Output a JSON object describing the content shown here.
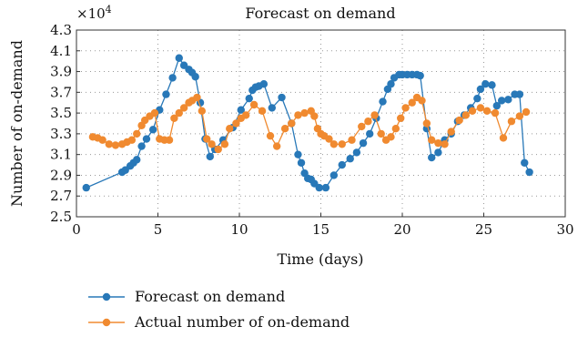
{
  "chart_data": {
    "type": "line",
    "title": "Forecast on demand",
    "xlabel": "Time (days)",
    "ylabel": "Number of on-demand",
    "y_multiplier_label": "×10",
    "y_multiplier_exp": "4",
    "xlim": [
      0,
      30
    ],
    "ylim": [
      2.5,
      4.3
    ],
    "x_ticks": [
      "0",
      "5",
      "10",
      "15",
      "20",
      "25",
      "30"
    ],
    "y_ticks": [
      "2.5",
      "2.7",
      "2.9",
      "3.1",
      "3.3",
      "3.5",
      "3.7",
      "3.9",
      "4.1",
      "4.3"
    ],
    "grid": true,
    "legend_position": "bottom-left",
    "series": [
      {
        "name": "Forecast on demand",
        "color": "#2878b8",
        "x": [
          0.6,
          2.8,
          3.0,
          3.3,
          3.5,
          3.7,
          4.0,
          4.3,
          4.7,
          5.1,
          5.5,
          5.9,
          6.3,
          6.6,
          6.9,
          7.1,
          7.3,
          7.6,
          7.9,
          8.2,
          8.5,
          9.0,
          9.6,
          10.1,
          10.6,
          10.8,
          11.0,
          11.2,
          11.5,
          12.0,
          12.6,
          13.2,
          13.6,
          13.8,
          14.0,
          14.2,
          14.4,
          14.6,
          14.9,
          15.3,
          15.8,
          16.3,
          16.8,
          17.2,
          17.6,
          18.0,
          18.4,
          18.8,
          19.1,
          19.3,
          19.5,
          19.8,
          20.0,
          20.3,
          20.6,
          20.9,
          21.1,
          21.5,
          21.8,
          22.2,
          22.6,
          23.0,
          23.4,
          23.8,
          24.2,
          24.6,
          24.8,
          25.1,
          25.5,
          25.8,
          26.1,
          26.5,
          26.9,
          27.2,
          27.5,
          27.8
        ],
        "y": [
          2.78,
          2.93,
          2.95,
          2.99,
          3.02,
          3.05,
          3.18,
          3.25,
          3.34,
          3.53,
          3.68,
          3.84,
          4.03,
          3.96,
          3.92,
          3.89,
          3.85,
          3.6,
          3.25,
          3.08,
          3.15,
          3.24,
          3.36,
          3.53,
          3.64,
          3.72,
          3.75,
          3.76,
          3.78,
          3.55,
          3.65,
          3.4,
          3.1,
          3.02,
          2.92,
          2.87,
          2.86,
          2.82,
          2.78,
          2.78,
          2.9,
          3.0,
          3.06,
          3.12,
          3.21,
          3.3,
          3.45,
          3.61,
          3.73,
          3.78,
          3.84,
          3.87,
          3.87,
          3.87,
          3.87,
          3.87,
          3.86,
          3.35,
          3.07,
          3.12,
          3.24,
          3.3,
          3.42,
          3.48,
          3.55,
          3.64,
          3.73,
          3.78,
          3.77,
          3.57,
          3.62,
          3.63,
          3.68,
          3.68,
          3.02,
          2.93
        ]
      },
      {
        "name": "Actual number of on-demand",
        "color": "#f08a30",
        "x": [
          1.0,
          1.3,
          1.6,
          2.0,
          2.4,
          2.8,
          3.1,
          3.4,
          3.7,
          4.0,
          4.2,
          4.5,
          4.8,
          5.1,
          5.4,
          5.7,
          6.0,
          6.3,
          6.6,
          6.9,
          7.1,
          7.4,
          7.7,
          8.0,
          8.3,
          8.7,
          9.1,
          9.4,
          9.8,
          10.1,
          10.4,
          10.9,
          11.4,
          11.9,
          12.3,
          12.8,
          13.2,
          13.6,
          14.0,
          14.4,
          14.6,
          14.8,
          15.0,
          15.2,
          15.5,
          15.8,
          16.3,
          16.9,
          17.5,
          17.9,
          18.3,
          18.7,
          19.0,
          19.3,
          19.6,
          19.9,
          20.2,
          20.6,
          20.9,
          21.2,
          21.5,
          21.8,
          22.2,
          22.6,
          23.0,
          23.5,
          23.9,
          24.3,
          24.8,
          25.2,
          25.7,
          26.2,
          26.7,
          27.2,
          27.6
        ],
        "y": [
          3.27,
          3.26,
          3.24,
          3.2,
          3.19,
          3.2,
          3.22,
          3.24,
          3.3,
          3.38,
          3.43,
          3.47,
          3.5,
          3.25,
          3.24,
          3.24,
          3.45,
          3.5,
          3.55,
          3.6,
          3.62,
          3.65,
          3.52,
          3.25,
          3.2,
          3.15,
          3.2,
          3.35,
          3.4,
          3.45,
          3.48,
          3.58,
          3.52,
          3.28,
          3.18,
          3.35,
          3.4,
          3.48,
          3.5,
          3.52,
          3.47,
          3.35,
          3.3,
          3.28,
          3.25,
          3.2,
          3.2,
          3.24,
          3.37,
          3.42,
          3.48,
          3.3,
          3.24,
          3.27,
          3.35,
          3.45,
          3.55,
          3.6,
          3.65,
          3.62,
          3.4,
          3.24,
          3.21,
          3.2,
          3.32,
          3.43,
          3.48,
          3.52,
          3.55,
          3.52,
          3.5,
          3.26,
          3.42,
          3.47,
          3.51
        ]
      }
    ]
  }
}
